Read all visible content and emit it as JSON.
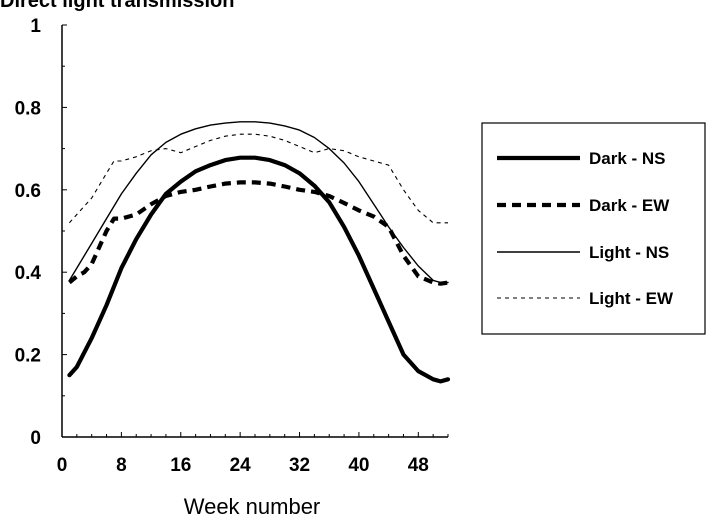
{
  "chart_data": {
    "type": "line",
    "title": "Direct light transmission",
    "xlabel": "Week number",
    "ylabel": "",
    "xlim": [
      0,
      52
    ],
    "ylim": [
      0,
      1
    ],
    "xticks": [
      0,
      8,
      16,
      24,
      32,
      40,
      48
    ],
    "yticks": [
      0,
      0.2,
      0.4,
      0.6,
      0.8,
      1
    ],
    "ytick_labels": [
      "0",
      "0.2",
      "0.4",
      "0.6",
      "0.8",
      "1"
    ],
    "grid": false,
    "legend_position": "right",
    "series": [
      {
        "name": "Dark - NS",
        "style": "thick-solid",
        "x": [
          1,
          2,
          4,
          6,
          8,
          10,
          12,
          14,
          16,
          18,
          20,
          22,
          24,
          26,
          28,
          30,
          32,
          34,
          36,
          38,
          40,
          42,
          44,
          46,
          48,
          50,
          51,
          52
        ],
        "y": [
          0.15,
          0.17,
          0.24,
          0.32,
          0.41,
          0.48,
          0.54,
          0.59,
          0.62,
          0.645,
          0.66,
          0.672,
          0.678,
          0.678,
          0.672,
          0.66,
          0.64,
          0.61,
          0.57,
          0.51,
          0.44,
          0.36,
          0.28,
          0.2,
          0.16,
          0.14,
          0.135,
          0.14
        ]
      },
      {
        "name": "Dark - EW",
        "style": "thick-dashed",
        "x": [
          1,
          2,
          3,
          4,
          6,
          7,
          8,
          10,
          12,
          14,
          16,
          18,
          20,
          22,
          24,
          26,
          28,
          30,
          32,
          34,
          36,
          38,
          40,
          42,
          44,
          46,
          48,
          50,
          51,
          52
        ],
        "y": [
          0.375,
          0.39,
          0.4,
          0.42,
          0.5,
          0.53,
          0.53,
          0.54,
          0.565,
          0.585,
          0.595,
          0.6,
          0.608,
          0.615,
          0.618,
          0.618,
          0.615,
          0.608,
          0.6,
          0.595,
          0.585,
          0.568,
          0.55,
          0.535,
          0.51,
          0.44,
          0.39,
          0.375,
          0.372,
          0.375
        ]
      },
      {
        "name": "Light - NS",
        "style": "thin-solid",
        "x": [
          1,
          2,
          4,
          6,
          8,
          10,
          12,
          14,
          16,
          18,
          20,
          22,
          24,
          26,
          28,
          30,
          32,
          34,
          36,
          38,
          40,
          42,
          44,
          46,
          48,
          50,
          51,
          52
        ],
        "y": [
          0.38,
          0.41,
          0.47,
          0.53,
          0.59,
          0.64,
          0.685,
          0.715,
          0.735,
          0.748,
          0.757,
          0.762,
          0.765,
          0.765,
          0.762,
          0.755,
          0.745,
          0.727,
          0.7,
          0.665,
          0.62,
          0.565,
          0.51,
          0.46,
          0.415,
          0.38,
          0.375,
          0.375
        ]
      },
      {
        "name": "Light - EW",
        "style": "thin-dashed",
        "x": [
          1,
          2,
          4,
          6,
          7,
          8,
          10,
          12,
          14,
          16,
          18,
          20,
          22,
          24,
          26,
          28,
          30,
          32,
          34,
          36,
          38,
          40,
          42,
          44,
          46,
          48,
          50,
          51,
          52
        ],
        "y": [
          0.52,
          0.54,
          0.58,
          0.64,
          0.67,
          0.67,
          0.68,
          0.695,
          0.7,
          0.69,
          0.705,
          0.72,
          0.73,
          0.735,
          0.735,
          0.73,
          0.72,
          0.705,
          0.69,
          0.7,
          0.695,
          0.68,
          0.67,
          0.66,
          0.6,
          0.55,
          0.52,
          0.52,
          0.52
        ]
      }
    ]
  }
}
